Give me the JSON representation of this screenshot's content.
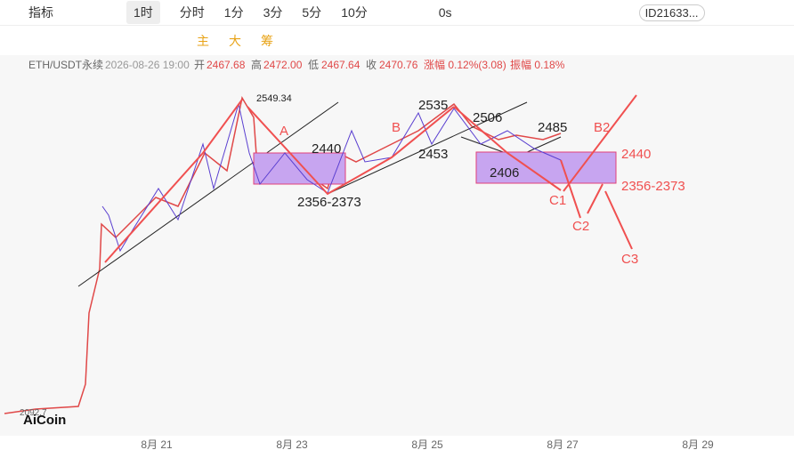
{
  "toolbar": {
    "indicator": "指标",
    "interval": "1时",
    "intervals": [
      "分时",
      "1分",
      "3分",
      "5分",
      "10分"
    ],
    "refresh": "0s",
    "account": "ID21633..."
  },
  "draw_toolbar": {
    "main": "主",
    "large": "大",
    "chips": "筹"
  },
  "info": {
    "symbol": "ETH/USDT永续",
    "datetime": "2026-08-26 19:00",
    "open_label": "开",
    "open": "2467.68",
    "high_label": "高",
    "high": "2472.00",
    "low_label": "低",
    "low": "2467.64",
    "close_label": "收",
    "close": "2470.76",
    "change": "涨幅 0.12%(3.08)",
    "amplitude": "振幅 0.18%"
  },
  "annotations": {
    "peak": "2549.34",
    "a": "A",
    "box1_top": "2440",
    "box1_low": "2356-2373",
    "b": "B",
    "b_high": "2535",
    "b_mid": "2506",
    "b_low": "2453",
    "sub_low": "2406",
    "sub_high": "2485",
    "b2": "B2",
    "right_top": "2440",
    "right_low": "2356-2373",
    "c1": "C1",
    "c2": "C2",
    "c3": "C3",
    "start": "2092.7"
  },
  "logo": "AiCoin",
  "x_axis": [
    "8月 21",
    "8月 23",
    "8月 25",
    "8月 27",
    "8月 29"
  ]
}
